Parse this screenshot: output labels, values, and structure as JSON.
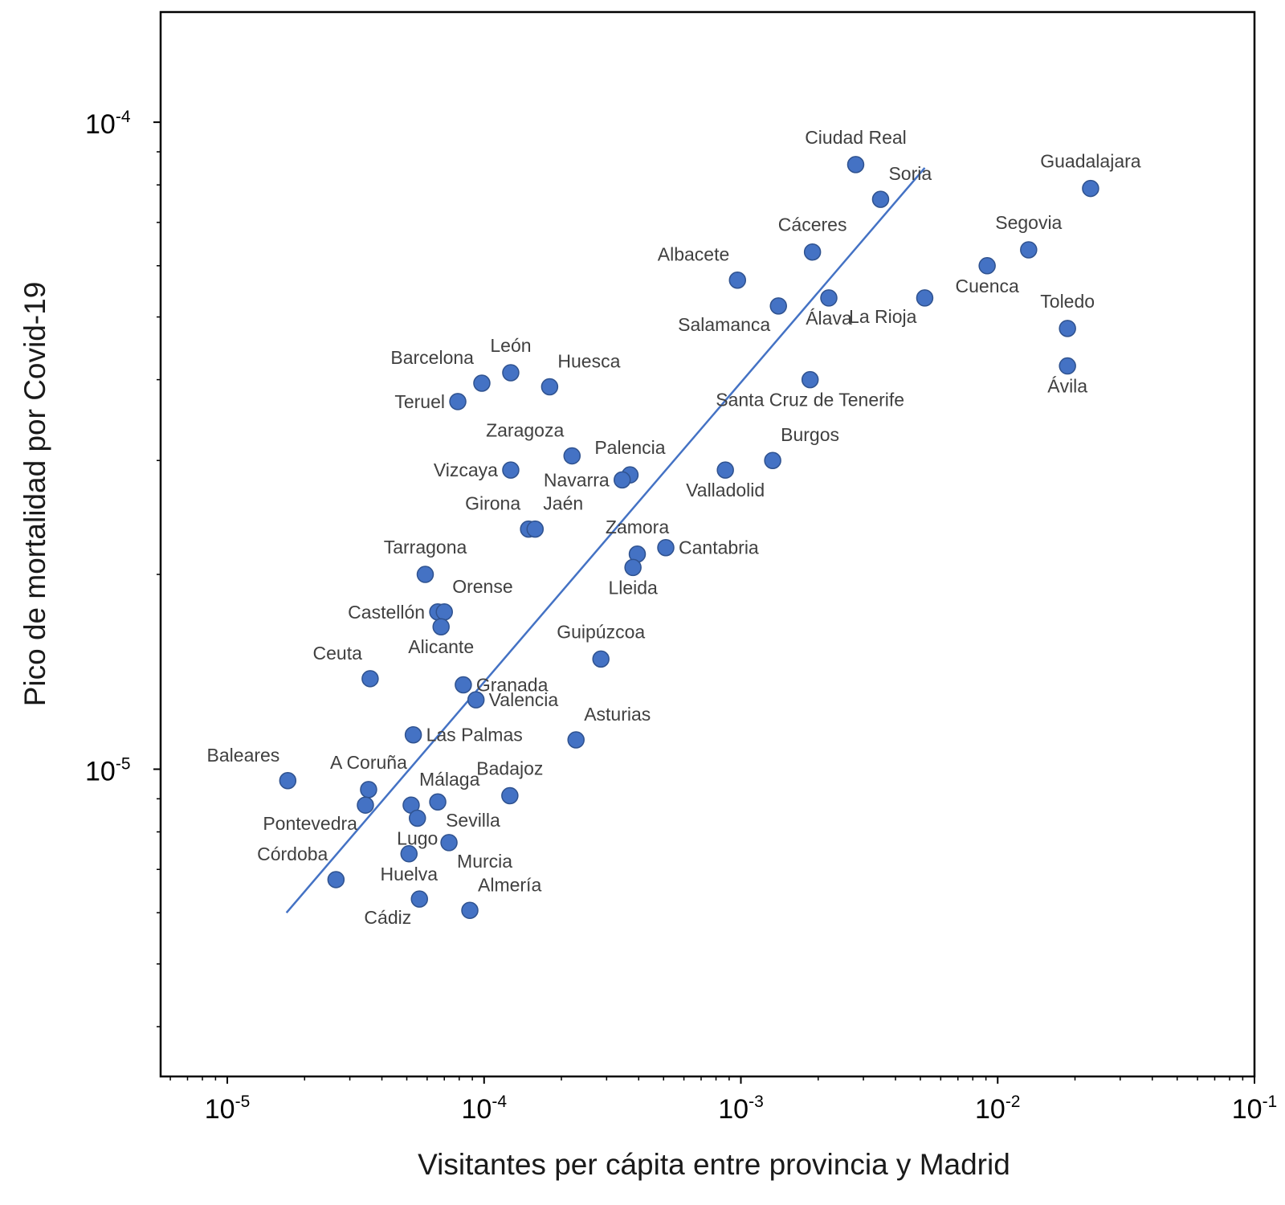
{
  "chart_data": {
    "type": "scatter",
    "xlabel": "Visitantes per cápita entre provincia y Madrid",
    "ylabel": "Pico de mortalidad por Covid-19",
    "xscale": "log",
    "yscale": "log",
    "xlim": [
      5.5e-06,
      0.1
    ],
    "ylim": [
      3.35e-06,
      0.000148
    ],
    "x_ticks": [
      {
        "value": 1e-05,
        "base": "10",
        "exp": "-5"
      },
      {
        "value": 0.0001,
        "base": "10",
        "exp": "-4"
      },
      {
        "value": 0.001,
        "base": "10",
        "exp": "-3"
      },
      {
        "value": 0.01,
        "base": "10",
        "exp": "-2"
      },
      {
        "value": 0.1,
        "base": "10",
        "exp": "-1"
      }
    ],
    "y_ticks": [
      {
        "value": 1e-05,
        "base": "10",
        "exp": "-5"
      },
      {
        "value": 0.0001,
        "base": "10",
        "exp": "-4"
      }
    ],
    "marker_color": "#4472C4",
    "marker_edge_color": "#2F528F",
    "trendline": {
      "color": "#4472C4",
      "x": [
        1.7e-05,
        0.0052
      ],
      "y": [
        6e-06,
        8.5e-05
      ]
    },
    "points": [
      {
        "name": "Ciudad Real",
        "x": 0.0028,
        "y": 8.6e-05,
        "label_pos": "above"
      },
      {
        "name": "Soria",
        "x": 0.0035,
        "y": 7.6e-05,
        "label_pos": "above-right"
      },
      {
        "name": "Guadalajara",
        "x": 0.023,
        "y": 7.9e-05,
        "label_pos": "above"
      },
      {
        "name": "Cáceres",
        "x": 0.0019,
        "y": 6.3e-05,
        "label_pos": "above"
      },
      {
        "name": "Segovia",
        "x": 0.0132,
        "y": 6.35e-05,
        "label_pos": "above"
      },
      {
        "name": "Albacete",
        "x": 0.00097,
        "y": 5.7e-05,
        "label_pos": "above-left"
      },
      {
        "name": "Cuenca",
        "x": 0.0091,
        "y": 6e-05,
        "label_pos": "below"
      },
      {
        "name": "La Rioja",
        "x": 0.0052,
        "y": 5.35e-05,
        "label_pos": "below-left"
      },
      {
        "name": "Salamanca",
        "x": 0.0014,
        "y": 5.2e-05,
        "label_pos": "below-left"
      },
      {
        "name": "Álava",
        "x": 0.0022,
        "y": 5.35e-05,
        "label_pos": "below"
      },
      {
        "name": "Toledo",
        "x": 0.0187,
        "y": 4.8e-05,
        "label_pos": "above"
      },
      {
        "name": "Ávila",
        "x": 0.0187,
        "y": 4.2e-05,
        "label_pos": "below"
      },
      {
        "name": "León",
        "x": 0.000127,
        "y": 4.1e-05,
        "label_pos": "above"
      },
      {
        "name": "Barcelona",
        "x": 9.8e-05,
        "y": 3.95e-05,
        "label_pos": "above-left"
      },
      {
        "name": "Huesca",
        "x": 0.00018,
        "y": 3.9e-05,
        "label_pos": "above-right"
      },
      {
        "name": "Teruel",
        "x": 7.9e-05,
        "y": 3.7e-05,
        "label_pos": "left"
      },
      {
        "name": "Santa Cruz de Tenerife",
        "x": 0.00186,
        "y": 4e-05,
        "label_pos": "below"
      },
      {
        "name": "Zaragoza",
        "x": 0.00022,
        "y": 3.05e-05,
        "label_pos": "above-left"
      },
      {
        "name": "Burgos",
        "x": 0.00133,
        "y": 3e-05,
        "label_pos": "above-right"
      },
      {
        "name": "Vizcaya",
        "x": 0.000127,
        "y": 2.9e-05,
        "label_pos": "left"
      },
      {
        "name": "Palencia",
        "x": 0.00037,
        "y": 2.85e-05,
        "label_pos": "above"
      },
      {
        "name": "Navarra",
        "x": 0.000345,
        "y": 2.8e-05,
        "label_pos": "left"
      },
      {
        "name": "Valladolid",
        "x": 0.00087,
        "y": 2.9e-05,
        "label_pos": "below"
      },
      {
        "name": "Girona",
        "x": 0.000149,
        "y": 2.35e-05,
        "label_pos": "above-left"
      },
      {
        "name": "Jaén",
        "x": 0.000158,
        "y": 2.35e-05,
        "label_pos": "above-right"
      },
      {
        "name": "Zamora",
        "x": 0.000395,
        "y": 2.15e-05,
        "label_pos": "above"
      },
      {
        "name": "Cantabria",
        "x": 0.00051,
        "y": 2.2e-05,
        "label_pos": "right"
      },
      {
        "name": "Lleida",
        "x": 0.00038,
        "y": 2.05e-05,
        "label_pos": "below"
      },
      {
        "name": "Tarragona",
        "x": 5.9e-05,
        "y": 2e-05,
        "label_pos": "above"
      },
      {
        "name": "Castellón",
        "x": 6.6e-05,
        "y": 1.75e-05,
        "label_pos": "left"
      },
      {
        "name": "Orense",
        "x": 7e-05,
        "y": 1.75e-05,
        "label_pos": "above-right"
      },
      {
        "name": "Alicante",
        "x": 6.8e-05,
        "y": 1.66e-05,
        "label_pos": "below"
      },
      {
        "name": "Guipúzcoa",
        "x": 0.000285,
        "y": 1.48e-05,
        "label_pos": "above"
      },
      {
        "name": "Ceuta",
        "x": 3.6e-05,
        "y": 1.38e-05,
        "label_pos": "above-left"
      },
      {
        "name": "Granada",
        "x": 8.3e-05,
        "y": 1.35e-05,
        "label_pos": "right"
      },
      {
        "name": "Valencia",
        "x": 9.3e-05,
        "y": 1.28e-05,
        "label_pos": "right"
      },
      {
        "name": "Las Palmas",
        "x": 5.3e-05,
        "y": 1.13e-05,
        "label_pos": "right"
      },
      {
        "name": "Asturias",
        "x": 0.000228,
        "y": 1.11e-05,
        "label_pos": "above-right"
      },
      {
        "name": "Baleares",
        "x": 1.72e-05,
        "y": 9.6e-06,
        "label_pos": "above-left"
      },
      {
        "name": "A Coruña",
        "x": 3.55e-05,
        "y": 9.3e-06,
        "label_pos": "above"
      },
      {
        "name": "Pontevedra",
        "x": 3.45e-05,
        "y": 8.8e-06,
        "label_pos": "below-left"
      },
      {
        "name": "Málaga",
        "x": 5.2e-05,
        "y": 8.8e-06,
        "label_pos": "above-right"
      },
      {
        "name": "Badajoz",
        "x": 0.000126,
        "y": 9.1e-06,
        "label_pos": "above"
      },
      {
        "name": "Sevilla",
        "x": 6.6e-05,
        "y": 8.9e-06,
        "label_pos": "below-right"
      },
      {
        "name": "Lugo",
        "x": 5.5e-05,
        "y": 8.4e-06,
        "label_pos": "below"
      },
      {
        "name": "Murcia",
        "x": 7.3e-05,
        "y": 7.7e-06,
        "label_pos": "below-right"
      },
      {
        "name": "Huelva",
        "x": 5.1e-05,
        "y": 7.4e-06,
        "label_pos": "below"
      },
      {
        "name": "Córdoba",
        "x": 2.65e-05,
        "y": 6.75e-06,
        "label_pos": "above-left"
      },
      {
        "name": "Cádiz",
        "x": 5.6e-05,
        "y": 6.3e-06,
        "label_pos": "below-left"
      },
      {
        "name": "Almería",
        "x": 8.8e-05,
        "y": 6.05e-06,
        "label_pos": "above-right"
      }
    ]
  }
}
